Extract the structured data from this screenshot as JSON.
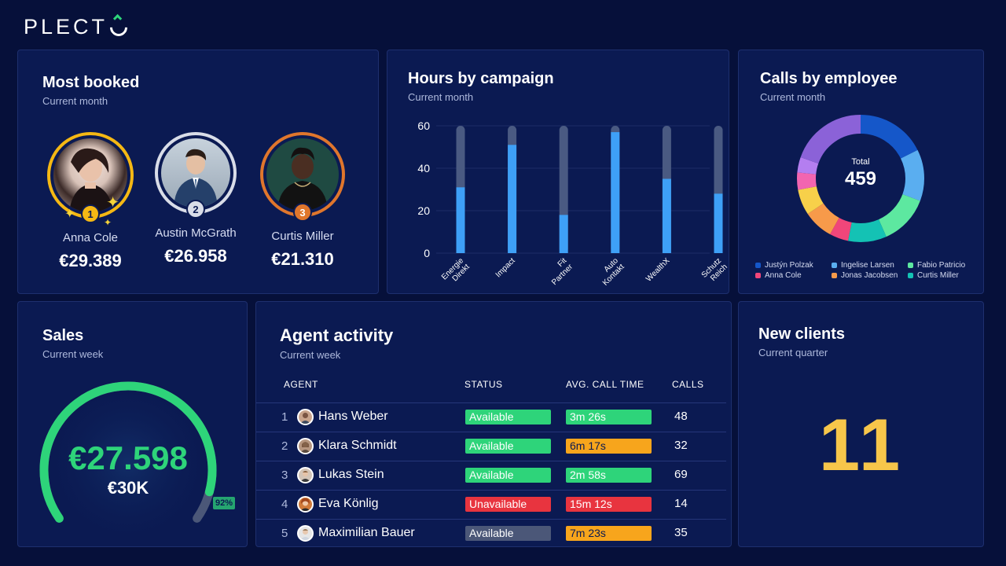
{
  "brand": {
    "logo_text": "PLECT"
  },
  "most_booked": {
    "title": "Most booked",
    "subtitle": "Current month",
    "people": [
      {
        "rank": "1",
        "name": "Anna Cole",
        "value": "€29.389",
        "ring_color": "#f5b814"
      },
      {
        "rank": "2",
        "name": "Austin McGrath",
        "value": "€26.958",
        "ring_color": "#d9dde8"
      },
      {
        "rank": "3",
        "name": "Curtis Miller",
        "value": "€21.310",
        "ring_color": "#e0762c"
      }
    ]
  },
  "hours_by_campaign": {
    "title": "Hours by campaign",
    "subtitle": "Current month"
  },
  "chart_data": [
    {
      "type": "bar",
      "categories": [
        "Energie Direkt",
        "Impact",
        "Fit Partner",
        "Auto Kontakt",
        "WealthX",
        "Schutz Reich"
      ],
      "series": [
        {
          "values": [
            31,
            51,
            18,
            57,
            35,
            28
          ]
        }
      ],
      "ylim": [
        0,
        60
      ],
      "yticks": [
        "0",
        "20",
        "40",
        "60"
      ],
      "grid": true
    },
    {
      "type": "pie",
      "categories": [
        "Justyn Polzak",
        "Ingelise Larsen",
        "Fabio Patricio",
        "Anna Cole",
        "Jonas Jacobsen",
        "Curtis Miller"
      ],
      "center_label": "Total",
      "center_value": "459",
      "slices": [
        {
          "label": "Justyn Polzak",
          "value": 81,
          "color": "#1557c9"
        },
        {
          "label": "Ingelise Larsen",
          "value": 60,
          "color": "#5aaef0"
        },
        {
          "label": "Fabio Patricio",
          "value": 58,
          "color": "#5de8a0"
        },
        {
          "label": "Curtis Miller",
          "value": 45,
          "color": "#14c2b4"
        },
        {
          "label": "Anna Cole",
          "value": 22,
          "color": "#f0467a"
        },
        {
          "label": "Jonas Jacobsen",
          "value": 35,
          "color": "#f79a4a"
        },
        {
          "label": "",
          "value": 30,
          "color": "#f7d04a"
        },
        {
          "label": "",
          "value": 20,
          "color": "#f265b0"
        },
        {
          "label": "",
          "value": 18,
          "color": "#b47ef0"
        },
        {
          "label": "",
          "value": 90,
          "color": "#8b62d8"
        }
      ]
    }
  ],
  "calls_by_employee": {
    "title": "Calls by employee",
    "subtitle": "Current month",
    "total_label": "Total",
    "total_value": "459",
    "legend": [
      {
        "label": "Justýn Polzak",
        "color": "#1557c9"
      },
      {
        "label": "Ingelise Larsen",
        "color": "#5aaef0"
      },
      {
        "label": "Fabio Patricio",
        "color": "#5de8a0"
      },
      {
        "label": "Anna Cole",
        "color": "#f0467a"
      },
      {
        "label": "Jonas Jacobsen",
        "color": "#f79a4a"
      },
      {
        "label": "Curtis Miller",
        "color": "#14c2b4"
      }
    ]
  },
  "sales": {
    "title": "Sales",
    "subtitle": "Current week",
    "value": "€27.598",
    "target": "€30K",
    "percent_label": "92%",
    "progress": 0.92,
    "accent": "#2ed47a"
  },
  "agent_activity": {
    "title": "Agent activity",
    "subtitle": "Current week",
    "columns": {
      "agent": "AGENT",
      "status": "STATUS",
      "avg_call_time": "AVG. CALL TIME",
      "calls": "CALLS"
    },
    "rows": [
      {
        "rank": "1",
        "name": "Hans Weber",
        "status": "Available",
        "status_color": "#2ed47a",
        "avg_call_time": "3m 26s",
        "time_color": "#2ed47a",
        "calls": "48"
      },
      {
        "rank": "2",
        "name": "Klara Schmidt",
        "status": "Available",
        "status_color": "#2ed47a",
        "avg_call_time": "6m 17s",
        "time_color": "#f7a51c",
        "calls": "32"
      },
      {
        "rank": "3",
        "name": "Lukas Stein",
        "status": "Available",
        "status_color": "#2ed47a",
        "avg_call_time": "2m 58s",
        "time_color": "#2ed47a",
        "calls": "69"
      },
      {
        "rank": "4",
        "name": "Eva Könlig",
        "status": "Unavailable",
        "status_color": "#e8343f",
        "avg_call_time": "15m 12s",
        "time_color": "#e8343f",
        "calls": "14"
      },
      {
        "rank": "5",
        "name": "Maximilian Bauer",
        "status": "Available",
        "status_color": "#4b5778",
        "avg_call_time": "7m 23s",
        "time_color": "#f7a51c",
        "calls": "35"
      }
    ]
  },
  "new_clients": {
    "title": "New clients",
    "subtitle": "Current quarter",
    "value": "11"
  }
}
